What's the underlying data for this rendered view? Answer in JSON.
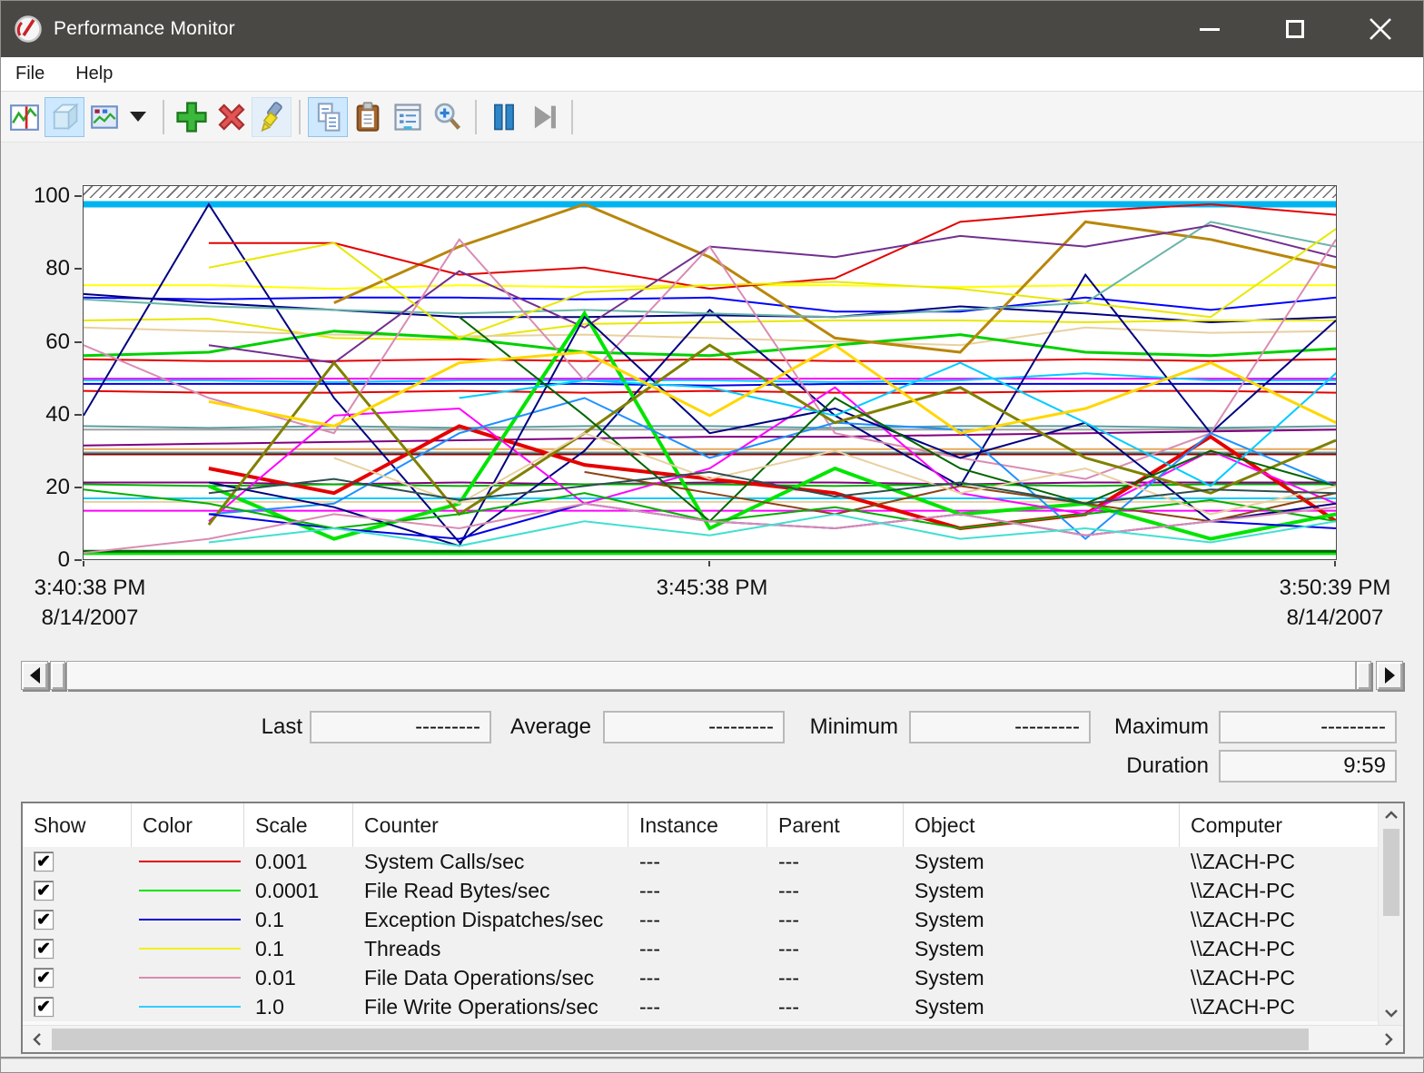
{
  "window": {
    "title": "Performance Monitor"
  },
  "menu": {
    "items": [
      "File",
      "Help"
    ]
  },
  "toolbar": {
    "buttons": [
      "view-current-activity",
      "view-log-data",
      "change-graph-type",
      "graph-type-dropdown",
      "add-counter",
      "delete-counter",
      "highlight",
      "copy-properties",
      "paste-counter-list",
      "properties",
      "zoom",
      "freeze-display",
      "update-data"
    ]
  },
  "chart_data": {
    "type": "line",
    "title": "",
    "xlabel": "",
    "ylabel": "",
    "ylim": [
      0,
      100
    ],
    "grid": false,
    "legend_position": "table-below",
    "yticks": [
      100,
      80,
      60,
      40,
      20,
      0
    ],
    "x_axis": {
      "left_time": "3:40:38 PM",
      "left_date": "8/14/2007",
      "center_time": "3:45:38 PM",
      "right_time": "3:50:39 PM",
      "right_date": "8/14/2007"
    },
    "points": 11,
    "series": [
      {
        "c": "#00b4f0",
        "w": 7,
        "s": 0,
        "v": [
          100,
          100,
          100,
          100,
          100,
          100,
          100,
          100,
          100,
          100,
          100
        ]
      },
      {
        "c": "#ffff00",
        "w": 2,
        "s": 0,
        "v": [
          77,
          77,
          76,
          77,
          76.5,
          77,
          77,
          76.5,
          77,
          77,
          77
        ]
      },
      {
        "c": "#0000ff",
        "w": 2,
        "s": 0,
        "v": [
          73.5,
          73,
          73.5,
          73.5,
          73,
          73.5,
          69.5,
          69.5,
          73.5,
          70,
          73.5
        ]
      },
      {
        "c": "#000080",
        "w": 2,
        "s": 0,
        "v": [
          74.5,
          72,
          70,
          68,
          68,
          68.5,
          68,
          71,
          69,
          66.5,
          68
        ]
      },
      {
        "c": "#e8e800",
        "w": 2,
        "s": 0,
        "v": [
          67,
          67.5,
          62,
          61.5,
          66,
          66.5,
          67,
          67,
          66.5,
          67,
          67
        ]
      },
      {
        "c": "#e8d0a0",
        "w": 2,
        "s": 0,
        "v": [
          65,
          64,
          63,
          62.5,
          63,
          62,
          61,
          60,
          65,
          63.5,
          64
        ]
      },
      {
        "c": "#00d000",
        "w": 3,
        "s": 0,
        "v": [
          57,
          58,
          64,
          62,
          58,
          57,
          60,
          63,
          58,
          57,
          59
        ]
      },
      {
        "c": "#e50000",
        "w": 2,
        "s": 0,
        "v": [
          56,
          55.5,
          55.5,
          56,
          55.5,
          56,
          55.5,
          55.5,
          56,
          55.5,
          56
        ]
      },
      {
        "c": "#ff00ff",
        "w": 2,
        "s": 0,
        "v": [
          50.5,
          50.5,
          50.5,
          50.5,
          50.5,
          50.5,
          50.5,
          50.5,
          50.5,
          50.5,
          50.5
        ]
      },
      {
        "c": "#0000e5",
        "w": 2,
        "s": 0,
        "v": [
          49,
          49,
          49,
          49,
          49,
          48.5,
          49,
          49,
          49,
          49,
          49
        ]
      },
      {
        "c": "#e50000",
        "w": 2,
        "s": 0,
        "v": [
          47,
          46.5,
          46.5,
          47,
          46.5,
          47,
          46.5,
          46.5,
          47,
          47,
          46.5
        ]
      },
      {
        "c": "#00ccff",
        "w": 2,
        "s": 0,
        "v": [
          50,
          50,
          49.5,
          50,
          50,
          50,
          49.5,
          50,
          52,
          50,
          50
        ]
      },
      {
        "c": "#5f9ea0",
        "w": 2,
        "s": 0,
        "v": [
          37,
          36.5,
          37,
          36.5,
          37,
          37,
          36.5,
          37,
          37,
          36.5,
          37
        ]
      },
      {
        "c": "#a0a0a0",
        "w": 2,
        "s": 0,
        "v": [
          36,
          36,
          36,
          36,
          36,
          36,
          36,
          36,
          36,
          36,
          36
        ]
      },
      {
        "c": "#800080",
        "w": 2,
        "s": 0,
        "v": [
          31.5,
          32,
          32.5,
          33,
          33.5,
          34,
          34,
          34.5,
          35,
          35.5,
          36
        ]
      },
      {
        "c": "#e8a858",
        "w": 2,
        "s": 0,
        "v": [
          30.5,
          30.5,
          30.5,
          30.5,
          30.5,
          30.5,
          30.5,
          30.5,
          30.5,
          30.5,
          30.5
        ]
      },
      {
        "c": "#5f9ea0",
        "w": 2,
        "s": 0,
        "v": [
          29.5,
          29.5,
          29.5,
          29.5,
          29.5,
          29.5,
          29.5,
          29.5,
          29.5,
          29.5,
          29.5
        ]
      },
      {
        "c": "#8b0000",
        "w": 2,
        "s": 0,
        "v": [
          29,
          29,
          29,
          29,
          29,
          29,
          29,
          29,
          29,
          29,
          29
        ]
      },
      {
        "c": "#800080",
        "w": 2,
        "s": 0,
        "v": [
          21,
          21,
          20.5,
          21,
          20.5,
          21,
          21,
          20.5,
          21,
          21,
          21
        ]
      },
      {
        "c": "#00b000",
        "w": 2,
        "s": 0,
        "v": [
          20.5,
          20,
          20.5,
          20,
          20.5,
          20.5,
          20,
          20.5,
          20,
          20.5,
          20.5
        ]
      },
      {
        "c": "#00ccff",
        "w": 2,
        "s": 0,
        "v": [
          16.5,
          16.5,
          16.5,
          16.5,
          16.5,
          16.5,
          16.5,
          16.5,
          16.5,
          16.5,
          16.5
        ]
      },
      {
        "c": "#e8d0a0",
        "w": 2,
        "s": 0,
        "v": [
          15.5,
          15.5,
          15.5,
          15.5,
          15.5,
          15.5,
          15.5,
          15.5,
          15.5,
          15.5,
          15.5
        ]
      },
      {
        "c": "#ff00ff",
        "w": 2,
        "s": 0,
        "v": [
          13,
          13,
          13,
          13,
          13,
          13,
          13,
          13,
          13,
          13,
          13
        ]
      },
      {
        "c": "#00e500",
        "w": 3,
        "s": 0,
        "v": [
          0.8,
          0.8,
          0.8,
          0.8,
          0.8,
          0.8,
          0.8,
          0.8,
          0.8,
          0.8,
          0.8
        ]
      },
      {
        "c": "#006400",
        "w": 3,
        "s": 0,
        "v": [
          1.5,
          1.5,
          1.5,
          1.5,
          1.5,
          1.5,
          1.5,
          1.5,
          1.5,
          1.5,
          1.5
        ]
      },
      {
        "c": "#000080",
        "w": 2,
        "s": 0,
        "v": [
          40,
          100,
          45,
          4,
          30,
          70,
          40,
          20,
          80,
          35,
          67
        ]
      },
      {
        "c": "#b8860b",
        "w": 3,
        "s": 2,
        "v": [
          72,
          88,
          100,
          85,
          62,
          58,
          95,
          90,
          82
        ]
      },
      {
        "c": "#e50000",
        "w": 2,
        "s": 1,
        "v": [
          89,
          89,
          80,
          82,
          76,
          79,
          95,
          98,
          100,
          97
        ]
      },
      {
        "c": "#69b5a8",
        "w": 2,
        "s": 0,
        "v": [
          73,
          71,
          70,
          69,
          70,
          69,
          68,
          70,
          72,
          95,
          88
        ]
      },
      {
        "c": "#722f8f",
        "w": 2,
        "s": 1,
        "v": [
          60,
          55,
          81,
          65,
          88,
          85,
          91,
          88,
          94,
          85
        ]
      },
      {
        "c": "#e8e800",
        "w": 2,
        "s": 1,
        "v": [
          82,
          89,
          62,
          75,
          77,
          78,
          76,
          72,
          68,
          93
        ]
      },
      {
        "c": "#d98cb3",
        "w": 2,
        "s": 0,
        "v": [
          60,
          45,
          35,
          90,
          50,
          88,
          35,
          28,
          22,
          35,
          90
        ]
      },
      {
        "c": "#e50000",
        "w": 4,
        "s": 1,
        "v": [
          25,
          18,
          37,
          26,
          22,
          18,
          8,
          12,
          34,
          10
        ]
      },
      {
        "c": "#00e500",
        "w": 4,
        "s": 1,
        "v": [
          20,
          5,
          15,
          69,
          8,
          25,
          12,
          15,
          5,
          12
        ]
      },
      {
        "c": "#ff00ff",
        "w": 2,
        "s": 1,
        "v": [
          10,
          40,
          42,
          15,
          25,
          48,
          18,
          12,
          30,
          15
        ]
      },
      {
        "c": "#1e90ff",
        "w": 2,
        "s": 1,
        "v": [
          12,
          15,
          35,
          45,
          28,
          38,
          36,
          5,
          35,
          20
        ]
      },
      {
        "c": "#000080",
        "w": 2,
        "s": 1,
        "v": [
          21,
          14,
          3,
          68,
          35,
          42,
          28,
          38,
          10,
          15
        ]
      },
      {
        "c": "#808000",
        "w": 3,
        "s": 1,
        "v": [
          9,
          55,
          12,
          35,
          60,
          38,
          48,
          28,
          18,
          33
        ]
      },
      {
        "c": "#00ccff",
        "w": 2,
        "s": 3,
        "v": [
          45,
          50,
          48,
          40,
          55,
          38,
          20,
          52,
          38
        ]
      },
      {
        "c": "#006400",
        "w": 2,
        "s": 3,
        "v": [
          68,
          40,
          10,
          45,
          25,
          15,
          30,
          20,
          18
        ]
      },
      {
        "c": "#8b4513",
        "w": 2,
        "s": 4,
        "v": [
          24,
          18,
          12,
          20,
          15,
          10,
          18,
          12
        ]
      },
      {
        "c": "#0000e5",
        "w": 2,
        "s": 1,
        "v": [
          12,
          8,
          5,
          15,
          10,
          8,
          12,
          6,
          10,
          8
        ]
      },
      {
        "c": "#00b000",
        "w": 2,
        "s": 0,
        "v": [
          19,
          15,
          8,
          12,
          18,
          10,
          14,
          8,
          12,
          16,
          10
        ]
      },
      {
        "c": "#d98cb3",
        "w": 2,
        "s": 0,
        "v": [
          1,
          5,
          12,
          8,
          15,
          10,
          8,
          12,
          6,
          10,
          14
        ]
      },
      {
        "c": "#ffd700",
        "w": 3,
        "s": 1,
        "v": [
          44,
          37,
          55,
          58,
          40,
          60,
          35,
          42,
          55,
          38
        ]
      },
      {
        "c": "#40e0d0",
        "w": 2,
        "s": 1,
        "v": [
          4,
          8,
          3,
          10,
          6,
          12,
          5,
          8,
          4,
          10
        ]
      },
      {
        "c": "#e8d0a0",
        "w": 2,
        "s": 2,
        "v": [
          28,
          15,
          35,
          22,
          30,
          18,
          25,
          12,
          20
        ]
      },
      {
        "c": "#2f4f4f",
        "w": 2,
        "s": 1,
        "v": [
          18,
          22,
          16,
          20,
          24,
          17,
          21,
          15,
          19,
          18
        ]
      }
    ]
  },
  "stats": {
    "last_label": "Last",
    "last_value": "---------",
    "average_label": "Average",
    "average_value": "---------",
    "minimum_label": "Minimum",
    "minimum_value": "---------",
    "maximum_label": "Maximum",
    "maximum_value": "---------",
    "duration_label": "Duration",
    "duration_value": "9:59"
  },
  "table": {
    "columns": [
      "Show",
      "Color",
      "Scale",
      "Counter",
      "Instance",
      "Parent",
      "Object",
      "Computer"
    ],
    "rows": [
      {
        "show": true,
        "color": "#e50000",
        "scale": "0.001",
        "counter": "System Calls/sec",
        "instance": "---",
        "parent": "---",
        "object": "System",
        "computer": "\\\\ZACH-PC"
      },
      {
        "show": true,
        "color": "#00e500",
        "scale": "0.0001",
        "counter": "File Read Bytes/sec",
        "instance": "---",
        "parent": "---",
        "object": "System",
        "computer": "\\\\ZACH-PC"
      },
      {
        "show": true,
        "color": "#0000cc",
        "scale": "0.1",
        "counter": "Exception Dispatches/sec",
        "instance": "---",
        "parent": "---",
        "object": "System",
        "computer": "\\\\ZACH-PC"
      },
      {
        "show": true,
        "color": "#f2f20c",
        "scale": "0.1",
        "counter": "Threads",
        "instance": "---",
        "parent": "---",
        "object": "System",
        "computer": "\\\\ZACH-PC"
      },
      {
        "show": true,
        "color": "#d98cb3",
        "scale": "0.01",
        "counter": "File Data Operations/sec",
        "instance": "---",
        "parent": "---",
        "object": "System",
        "computer": "\\\\ZACH-PC"
      },
      {
        "show": true,
        "color": "#33ccff",
        "scale": "1.0",
        "counter": "File Write Operations/sec",
        "instance": "---",
        "parent": "---",
        "object": "System",
        "computer": "\\\\ZACH-PC"
      }
    ]
  },
  "colors": {
    "titlebar": "#4a4845",
    "limit_line": "#00b4f0",
    "selected_tool_bg": "#cde8ff"
  }
}
